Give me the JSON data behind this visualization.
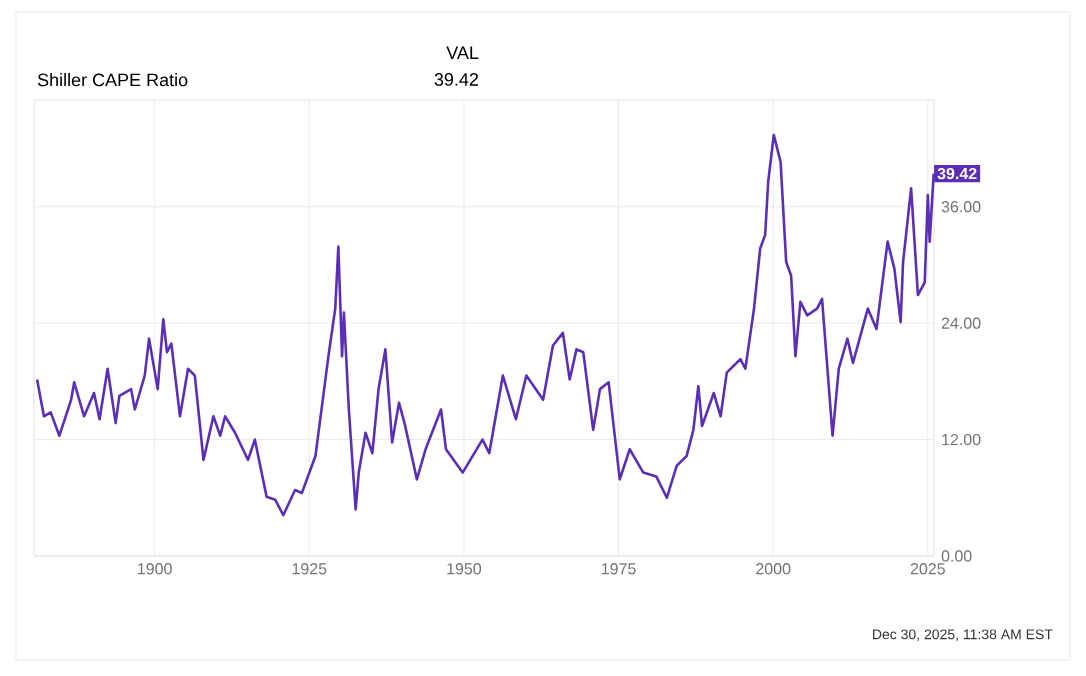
{
  "chart_data": {
    "type": "line",
    "title": "Shiller CAPE Ratio",
    "x": [
      1881.0,
      1882.1,
      1883.2,
      1884.6,
      1886.5,
      1887.0,
      1888.6,
      1890.2,
      1891.1,
      1892.4,
      1893.7,
      1894.3,
      1896.2,
      1896.8,
      1898.4,
      1899.1,
      1900.5,
      1901.4,
      1902.0,
      1902.7,
      1904.1,
      1905.4,
      1906.5,
      1907.9,
      1909.5,
      1910.6,
      1911.4,
      1913.0,
      1915.1,
      1916.2,
      1918.1,
      1919.5,
      1920.8,
      1922.7,
      1923.8,
      1926.0,
      1928.1,
      1929.2,
      1929.7,
      1930.3,
      1930.6,
      1931.4,
      1932.5,
      1933.0,
      1934.1,
      1935.2,
      1936.2,
      1937.3,
      1938.4,
      1939.5,
      1940.4,
      1942.4,
      1943.8,
      1946.3,
      1947.1,
      1949.8,
      1953.0,
      1954.1,
      1956.3,
      1958.4,
      1960.1,
      1962.8,
      1964.4,
      1966.0,
      1967.1,
      1968.2,
      1969.3,
      1970.9,
      1972.0,
      1973.4,
      1975.2,
      1976.8,
      1979.0,
      1981.1,
      1982.8,
      1984.4,
      1986.0,
      1987.1,
      1987.9,
      1988.5,
      1990.4,
      1991.5,
      1992.5,
      1994.7,
      1995.5,
      1996.9,
      1997.9,
      1998.7,
      1999.2,
      2000.1,
      2001.2,
      2002.1,
      2002.9,
      2003.6,
      2004.4,
      2005.5,
      2007.1,
      2007.9,
      2009.6,
      2010.6,
      2012.0,
      2012.9,
      2015.3,
      2016.7,
      2018.5,
      2019.6,
      2020.6,
      2021.0,
      2022.3,
      2023.4,
      2024.5,
      2025.0,
      2025.3,
      2025.95
    ],
    "series": [
      {
        "color": "#5b2fb5",
        "values": [
          18.2,
          14.4,
          14.8,
          12.4,
          16.1,
          17.9,
          14.4,
          16.8,
          14.1,
          19.3,
          13.7,
          16.5,
          17.2,
          15.1,
          18.6,
          22.4,
          17.2,
          24.4,
          21.0,
          21.9,
          14.4,
          19.3,
          18.6,
          9.9,
          14.4,
          12.4,
          14.4,
          12.7,
          9.9,
          12.0,
          6.1,
          5.8,
          4.2,
          6.8,
          6.5,
          10.3,
          20.6,
          25.5,
          31.9,
          20.6,
          25.1,
          15.1,
          4.8,
          8.6,
          12.7,
          10.6,
          17.2,
          21.3,
          11.7,
          15.8,
          13.7,
          7.9,
          11.0,
          15.1,
          11.0,
          8.6,
          12.0,
          10.6,
          18.6,
          14.1,
          18.6,
          16.1,
          21.7,
          23.0,
          18.2,
          21.3,
          21.0,
          13.0,
          17.2,
          17.9,
          7.9,
          11.0,
          8.6,
          8.2,
          6.0,
          9.3,
          10.3,
          13.0,
          17.5,
          13.4,
          16.8,
          14.4,
          18.9,
          20.3,
          19.3,
          25.5,
          31.7,
          33.1,
          38.6,
          43.4,
          40.6,
          30.3,
          28.9,
          20.6,
          26.2,
          24.8,
          25.5,
          26.5,
          12.4,
          19.3,
          22.4,
          19.9,
          25.5,
          23.4,
          32.4,
          29.6,
          24.1,
          30.3,
          37.9,
          26.9,
          28.2,
          37.2,
          32.4,
          39.42
        ]
      }
    ],
    "xlim": [
      1880.5,
      2026
    ],
    "ylim": [
      0,
      47
    ],
    "xticks": [
      1900,
      1925,
      1950,
      1975,
      2000,
      2025
    ],
    "yticks": [
      {
        "value": 0,
        "label": "0.00"
      },
      {
        "value": 12,
        "label": "12.00"
      },
      {
        "value": 24,
        "label": "24.00"
      },
      {
        "value": 36,
        "label": "36.00"
      }
    ],
    "grid": true,
    "line_style": "solid",
    "annotations": [
      "VAL",
      "39.42",
      {
        "text": "39.42",
        "x": 2025.95,
        "y": 39.42
      },
      "Dec 30, 2025, 11:38 AM EST"
    ]
  }
}
